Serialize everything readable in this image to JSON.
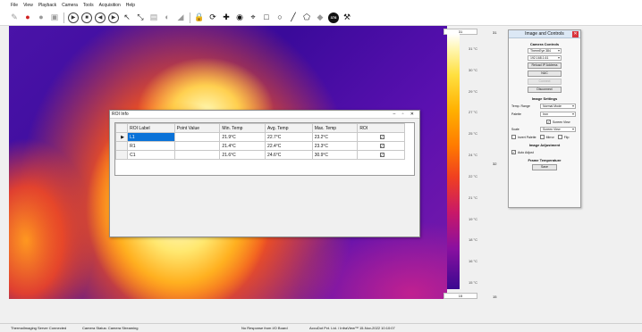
{
  "menu": [
    "File",
    "View",
    "Playback",
    "Camera",
    "Tools",
    "Acquisition",
    "Help"
  ],
  "toolbar": {
    "icons": [
      {
        "name": "open-icon",
        "glyph": "✎",
        "style": "grey"
      },
      {
        "name": "record-icon",
        "glyph": "●",
        "style": "red"
      },
      {
        "name": "stop-record-icon",
        "glyph": "●",
        "style": "grey"
      },
      {
        "name": "snapshot-icon",
        "glyph": "▣",
        "style": "grey"
      },
      {
        "name": "sep",
        "glyph": "",
        "style": "sep"
      },
      {
        "name": "play-icon",
        "glyph": "▶",
        "style": "ring"
      },
      {
        "name": "stop-icon",
        "glyph": "■",
        "style": "ring"
      },
      {
        "name": "rewind-icon",
        "glyph": "◀",
        "style": "ring"
      },
      {
        "name": "forward-icon",
        "glyph": "▶",
        "style": "ring"
      },
      {
        "name": "pointer-icon",
        "glyph": "↖",
        "style": ""
      },
      {
        "name": "line-select-icon",
        "glyph": "⤡",
        "style": ""
      },
      {
        "name": "image-icon",
        "glyph": "▤",
        "style": "grey"
      },
      {
        "name": "palette-icon",
        "glyph": "◐",
        "style": "grey"
      },
      {
        "name": "histogram-icon",
        "glyph": "◢",
        "style": "grey"
      },
      {
        "name": "sep",
        "glyph": "",
        "style": "sep"
      },
      {
        "name": "lock-icon",
        "glyph": "🔒",
        "style": "blk"
      },
      {
        "name": "refresh-icon",
        "glyph": "⟳",
        "style": "blk"
      },
      {
        "name": "move-icon",
        "glyph": "✚",
        "style": "blk"
      },
      {
        "name": "eye-icon",
        "glyph": "◉",
        "style": "blk"
      },
      {
        "name": "crosshair-icon",
        "glyph": "⌖",
        "style": "blk"
      },
      {
        "name": "rectangle-roi-icon",
        "glyph": "□",
        "style": "blk"
      },
      {
        "name": "circle-roi-icon",
        "glyph": "○",
        "style": "blk"
      },
      {
        "name": "line-roi-icon",
        "glyph": "╱",
        "style": "blk"
      },
      {
        "name": "polygon-roi-icon",
        "glyph": "⬠",
        "style": "blk"
      },
      {
        "name": "diamond-icon",
        "glyph": "◆",
        "style": "grey"
      },
      {
        "name": "temperature-badge-icon",
        "glyph": "378",
        "style": "badge"
      },
      {
        "name": "tools-icon",
        "glyph": "⚒",
        "style": "blk"
      }
    ]
  },
  "colorbar": {
    "top_value": "31",
    "bottom_value": "15",
    "ticks": [
      "31 °C",
      "30 °C",
      "29 °C",
      "27 °C",
      "25 °C",
      "24 °C",
      "22 °C",
      "21 °C",
      "19 °C",
      "18 °C",
      "16 °C",
      "15 °C"
    ],
    "cursor_value": "32"
  },
  "panel": {
    "title": "Image and Controls",
    "camera_controls_heading": "Camera Controls",
    "camera_model": "ThermEye 384",
    "ip_address": "192.168.1.61",
    "reload_ip_label": "Reload IP Address",
    "nuc_label": "NUC",
    "connect_label": "Connect",
    "disconnect_label": "Disconnect",
    "image_settings_heading": "Image Settings",
    "temp_range_label": "Temp. Range",
    "temp_range_value": "Normal Mode",
    "palette_label": "Palette",
    "palette_value": "Iron",
    "screen_view_check_label": "Screen View",
    "scale_label": "Scale",
    "scale_value": "Screen View",
    "invert_palette_label": "Invert Palette",
    "mirror_label": "Mirror",
    "flip_label": "Flip",
    "image_adjustment_heading": "Image Adjustment",
    "auto_adjust_label": "Auto Adjust",
    "frame_temperature_heading": "Frame Temperature",
    "save_label": "Save"
  },
  "roi_info": {
    "title": "ROI Info",
    "window_controls": "– ▫ ✕",
    "columns": [
      "ROI Label",
      "Point Value",
      "Min. Temp",
      "Avg. Temp",
      "Max. Temp",
      "ROI"
    ],
    "rows": [
      {
        "label": "L1",
        "point": "",
        "min": "21.9°C",
        "avg": "22.7°C",
        "max": "23.2°C"
      },
      {
        "label": "R1",
        "point": "",
        "min": "21.4°C",
        "avg": "22.4°C",
        "max": "23.3°C"
      },
      {
        "label": "C1",
        "point": "",
        "min": "21.6°C",
        "avg": "24.6°C",
        "max": "30.9°C"
      }
    ]
  },
  "status": {
    "server": "ThermalImaging Server Connected",
    "camera": "Camera Status: Camera Streaming",
    "io_board": "No Response from I/O Board",
    "copyright": "AccuDot Pvt. Ltd. / InfraView™ 15-Nov-2022 10:10:07"
  }
}
